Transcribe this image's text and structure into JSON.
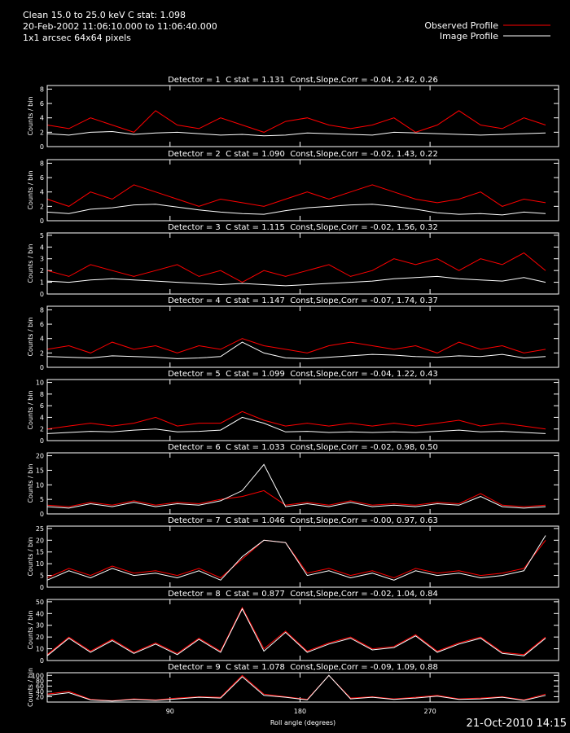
{
  "header": {
    "lines": [
      "Clean 15.0 to 25.0 keV C stat: 1.098",
      "20-Feb-2002 11:06:10.000 to 11:06:40.000",
      "1x1 arcsec 64x64 pixels"
    ]
  },
  "footer": "21-Oct-2010 14:15",
  "chart_data": [
    {
      "type": "line",
      "title": "Detector = 1  C stat = 1.131  Const,Slope,Corr = -0.04, 2.42, 0.26",
      "y_label": "Counts / bin",
      "x": [
        5,
        20,
        35,
        50,
        65,
        80,
        95,
        110,
        125,
        140,
        155,
        170,
        185,
        200,
        215,
        230,
        245,
        260,
        275,
        290,
        305,
        320,
        335,
        350
      ],
      "xlim": [
        5,
        359
      ],
      "xticks": [
        90,
        180,
        270
      ],
      "ylim": [
        0,
        8.5
      ],
      "yticks": [
        0,
        2,
        4,
        6,
        8
      ],
      "series": [
        {
          "name": "Observed Profile",
          "color": "#ff0000",
          "values": [
            3,
            2.5,
            4,
            3,
            2,
            5,
            3,
            2.5,
            4,
            3,
            2,
            3.5,
            4,
            3,
            2.5,
            3,
            4,
            2,
            3,
            5,
            3,
            2.5,
            4,
            3
          ]
        },
        {
          "name": "Image Profile",
          "color": "#ffffff",
          "values": [
            1.8,
            1.6,
            2,
            2.1,
            1.7,
            1.9,
            2,
            1.8,
            1.6,
            1.7,
            1.5,
            1.6,
            1.9,
            1.8,
            1.7,
            1.6,
            2,
            1.9,
            1.8,
            1.7,
            1.6,
            1.7,
            1.8,
            1.9
          ]
        }
      ]
    },
    {
      "type": "line",
      "title": "Detector = 2  C stat = 1.090  Const,Slope,Corr = -0.02, 1.43, 0.22",
      "y_label": "Counts / bin",
      "x": [
        5,
        20,
        35,
        50,
        65,
        80,
        95,
        110,
        125,
        140,
        155,
        170,
        185,
        200,
        215,
        230,
        245,
        260,
        275,
        290,
        305,
        320,
        335,
        350
      ],
      "xlim": [
        5,
        359
      ],
      "xticks": [
        90,
        180,
        270
      ],
      "ylim": [
        0,
        8.5
      ],
      "yticks": [
        0,
        2,
        4,
        6,
        8
      ],
      "series": [
        {
          "name": "Observed Profile",
          "color": "#ff0000",
          "values": [
            3,
            2,
            4,
            3,
            5,
            4,
            3,
            2,
            3,
            2.5,
            2,
            3,
            4,
            3,
            4,
            5,
            4,
            3,
            2.5,
            3,
            4,
            2,
            3,
            2.5
          ]
        },
        {
          "name": "Image Profile",
          "color": "#ffffff",
          "values": [
            1.2,
            1.0,
            1.6,
            1.8,
            2.2,
            2.3,
            1.9,
            1.5,
            1.2,
            1.0,
            0.9,
            1.4,
            1.8,
            2.0,
            2.2,
            2.3,
            2.0,
            1.6,
            1.1,
            0.9,
            1.0,
            0.8,
            1.2,
            1.0
          ]
        }
      ]
    },
    {
      "type": "line",
      "title": "Detector = 3  C stat = 1.115  Const,Slope,Corr = -0.02, 1.56, 0.32",
      "y_label": "Counts / bin",
      "x": [
        5,
        20,
        35,
        50,
        65,
        80,
        95,
        110,
        125,
        140,
        155,
        170,
        185,
        200,
        215,
        230,
        245,
        260,
        275,
        290,
        305,
        320,
        335,
        350
      ],
      "xlim": [
        5,
        359
      ],
      "xticks": [
        90,
        180,
        270
      ],
      "ylim": [
        0,
        5.2
      ],
      "yticks": [
        0,
        1,
        2,
        3,
        4,
        5
      ],
      "series": [
        {
          "name": "Observed Profile",
          "color": "#ff0000",
          "values": [
            2,
            1.5,
            2.5,
            2,
            1.5,
            2,
            2.5,
            1.5,
            2,
            1,
            2,
            1.5,
            2,
            2.5,
            1.5,
            2,
            3,
            2.5,
            3,
            2,
            3,
            2.5,
            3.5,
            2
          ]
        },
        {
          "name": "Image Profile",
          "color": "#ffffff",
          "values": [
            1.1,
            1.0,
            1.2,
            1.3,
            1.2,
            1.1,
            1.0,
            0.9,
            0.8,
            0.9,
            0.8,
            0.7,
            0.8,
            0.9,
            1.0,
            1.1,
            1.3,
            1.4,
            1.5,
            1.3,
            1.2,
            1.1,
            1.4,
            1.0
          ]
        }
      ]
    },
    {
      "type": "line",
      "title": "Detector = 4  C stat = 1.147  Const,Slope,Corr = -0.07, 1.74, 0.37",
      "y_label": "Counts / bin",
      "x": [
        5,
        20,
        35,
        50,
        65,
        80,
        95,
        110,
        125,
        140,
        155,
        170,
        185,
        200,
        215,
        230,
        245,
        260,
        275,
        290,
        305,
        320,
        335,
        350
      ],
      "xlim": [
        5,
        359
      ],
      "xticks": [
        90,
        180,
        270
      ],
      "ylim": [
        0,
        8.5
      ],
      "yticks": [
        0,
        2,
        4,
        6,
        8
      ],
      "series": [
        {
          "name": "Observed Profile",
          "color": "#ff0000",
          "values": [
            2.5,
            3,
            2,
            3.5,
            2.5,
            3,
            2,
            3,
            2.5,
            4,
            3,
            2.5,
            2,
            3,
            3.5,
            3,
            2.5,
            3,
            2,
            3.5,
            2.5,
            3,
            2,
            2.5
          ]
        },
        {
          "name": "Image Profile",
          "color": "#ffffff",
          "values": [
            1.5,
            1.4,
            1.3,
            1.6,
            1.5,
            1.4,
            1.2,
            1.3,
            1.5,
            3.5,
            2.0,
            1.3,
            1.2,
            1.4,
            1.6,
            1.8,
            1.7,
            1.5,
            1.4,
            1.6,
            1.5,
            1.8,
            1.3,
            1.5
          ]
        }
      ]
    },
    {
      "type": "line",
      "title": "Detector = 5  C stat = 1.099  Const,Slope,Corr = -0.04, 1.22, 0.43",
      "y_label": "Counts / bin",
      "x": [
        5,
        20,
        35,
        50,
        65,
        80,
        95,
        110,
        125,
        140,
        155,
        170,
        185,
        200,
        215,
        230,
        245,
        260,
        275,
        290,
        305,
        320,
        335,
        350
      ],
      "xlim": [
        5,
        359
      ],
      "xticks": [
        90,
        180,
        270
      ],
      "ylim": [
        0,
        10.5
      ],
      "yticks": [
        0,
        2,
        4,
        6,
        8,
        10
      ],
      "series": [
        {
          "name": "Observed Profile",
          "color": "#ff0000",
          "values": [
            2,
            2.5,
            3,
            2.5,
            3,
            4,
            2.5,
            3,
            3,
            5,
            3.5,
            2.5,
            3,
            2.5,
            3,
            2.5,
            3,
            2.5,
            3,
            3.5,
            2.5,
            3,
            2.5,
            2
          ]
        },
        {
          "name": "Image Profile",
          "color": "#ffffff",
          "values": [
            1.2,
            1.4,
            1.6,
            1.5,
            1.8,
            2,
            1.5,
            1.6,
            1.8,
            4,
            3,
            1.5,
            1.6,
            1.4,
            1.5,
            1.4,
            1.5,
            1.4,
            1.6,
            1.8,
            1.5,
            1.6,
            1.4,
            1.2
          ]
        }
      ]
    },
    {
      "type": "line",
      "title": "Detector = 6  C stat = 1.033  Const,Slope,Corr = -0.02, 0.98, 0.50",
      "y_label": "Counts / bin",
      "x": [
        5,
        20,
        35,
        50,
        65,
        80,
        95,
        110,
        125,
        140,
        155,
        170,
        185,
        200,
        215,
        230,
        245,
        260,
        275,
        290,
        305,
        320,
        335,
        350
      ],
      "xlim": [
        5,
        359
      ],
      "xticks": [
        90,
        180,
        270
      ],
      "ylim": [
        0,
        21
      ],
      "yticks": [
        0,
        5,
        10,
        15,
        20
      ],
      "series": [
        {
          "name": "Observed Profile",
          "color": "#ff0000",
          "values": [
            3,
            2.5,
            4,
            3,
            4.5,
            3,
            4,
            3.5,
            5,
            6,
            8,
            3,
            4,
            3,
            4.5,
            3,
            3.5,
            3,
            4,
            3.5,
            7,
            3,
            2.5,
            3
          ]
        },
        {
          "name": "Image Profile",
          "color": "#ffffff",
          "values": [
            2.5,
            2,
            3.5,
            2.5,
            4,
            2.5,
            3.5,
            3,
            4.5,
            8,
            17,
            2.5,
            3.5,
            2.5,
            4,
            2.5,
            3,
            2.5,
            3.5,
            3,
            6,
            2.5,
            2,
            2.5
          ]
        }
      ]
    },
    {
      "type": "line",
      "title": "Detector = 7  C stat = 1.046  Const,Slope,Corr = -0.00, 0.97, 0.63",
      "y_label": "Counts / bin",
      "x": [
        5,
        20,
        35,
        50,
        65,
        80,
        95,
        110,
        125,
        140,
        155,
        170,
        185,
        200,
        215,
        230,
        245,
        260,
        275,
        290,
        305,
        320,
        335,
        350
      ],
      "xlim": [
        5,
        359
      ],
      "xticks": [
        90,
        180,
        270
      ],
      "ylim": [
        0,
        26
      ],
      "yticks": [
        0,
        5,
        10,
        15,
        20,
        25
      ],
      "series": [
        {
          "name": "Observed Profile",
          "color": "#ff0000",
          "values": [
            4,
            8,
            5,
            9,
            6,
            7,
            5,
            8,
            4,
            12,
            20,
            19,
            6,
            8,
            5,
            7,
            4,
            8,
            6,
            7,
            5,
            6,
            8,
            20
          ]
        },
        {
          "name": "Image Profile",
          "color": "#ffffff",
          "values": [
            3,
            7,
            4,
            8,
            5,
            6,
            4,
            7,
            3,
            13,
            20,
            19,
            5,
            7,
            4,
            6,
            3,
            7,
            5,
            6,
            4,
            5,
            7,
            22
          ]
        }
      ]
    },
    {
      "type": "line",
      "title": "Detector = 8  C stat = 0.877  Const,Slope,Corr = -0.02, 1.04, 0.84",
      "y_label": "Counts / bin",
      "x": [
        5,
        20,
        35,
        50,
        65,
        80,
        95,
        110,
        125,
        140,
        155,
        170,
        185,
        200,
        215,
        230,
        245,
        260,
        275,
        290,
        305,
        320,
        335,
        350
      ],
      "xlim": [
        5,
        359
      ],
      "xticks": [
        90,
        180,
        270
      ],
      "ylim": [
        0,
        52
      ],
      "yticks": [
        0,
        10,
        20,
        30,
        40,
        50
      ],
      "series": [
        {
          "name": "Observed Profile",
          "color": "#ff0000",
          "values": [
            5,
            20,
            8,
            18,
            7,
            15,
            6,
            19,
            8,
            45,
            10,
            25,
            8,
            15,
            20,
            10,
            12,
            22,
            8,
            15,
            20,
            7,
            5,
            20
          ]
        },
        {
          "name": "Image Profile",
          "color": "#ffffff",
          "values": [
            4,
            19,
            7,
            17,
            6,
            14,
            5,
            18,
            7,
            44,
            8,
            24,
            7,
            14,
            19,
            9,
            11,
            21,
            7,
            14,
            19,
            6,
            4,
            19
          ]
        }
      ]
    },
    {
      "type": "line",
      "title": "Detector = 9  C stat = 1.078  Const,Slope,Corr = -0.09, 1.09, 0.88",
      "y_label": "Counts / bin",
      "x_label": "Roll angle (degrees)",
      "x": [
        5,
        20,
        35,
        50,
        65,
        80,
        95,
        110,
        125,
        140,
        155,
        170,
        185,
        200,
        215,
        230,
        245,
        260,
        275,
        290,
        305,
        320,
        335,
        350
      ],
      "xlim": [
        5,
        359
      ],
      "xticks": [
        90,
        180,
        270
      ],
      "ylim": [
        0,
        110
      ],
      "yticks": [
        20,
        40,
        60,
        80,
        100
      ],
      "series": [
        {
          "name": "Observed Profile",
          "color": "#ff0000",
          "values": [
            30,
            40,
            10,
            5,
            12,
            8,
            15,
            20,
            18,
            100,
            30,
            20,
            10,
            100,
            15,
            20,
            12,
            18,
            25,
            12,
            15,
            20,
            8,
            30
          ]
        },
        {
          "name": "Image Profile",
          "color": "#ffffff",
          "values": [
            25,
            35,
            8,
            4,
            10,
            6,
            12,
            18,
            15,
            95,
            25,
            18,
            8,
            100,
            12,
            18,
            10,
            15,
            22,
            10,
            12,
            18,
            6,
            25
          ]
        }
      ]
    }
  ]
}
